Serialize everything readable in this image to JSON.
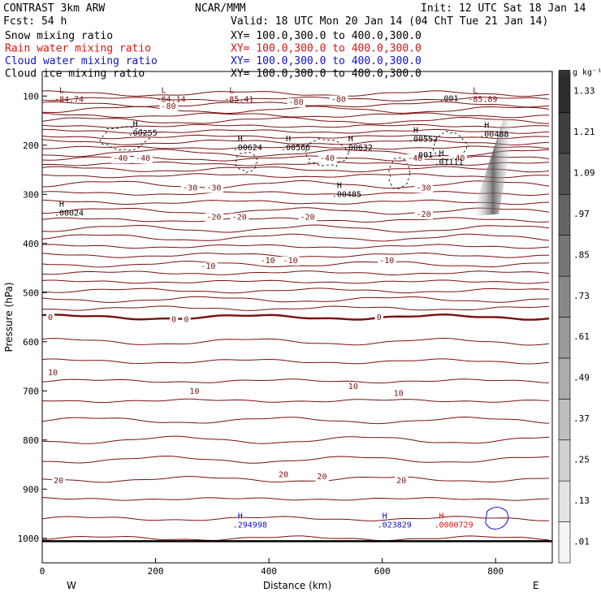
{
  "header": {
    "left_title": "CONTRAST  3km ARW",
    "center_title": "NCAR/MMM",
    "init": "Init: 12 UTC Sat 18 Jan 14",
    "fcst": "Fcst:   54 h",
    "valid": "Valid: 18 UTC Mon 20 Jan 14 (04 ChT Tue 21 Jan 14)"
  },
  "fields": [
    {
      "name": "Snow mixing ratio",
      "xy": "XY= 100.0,300.0 to 400.0,300.0",
      "color": "#000000"
    },
    {
      "name": "Rain water mixing ratio",
      "xy": "XY= 100.0,300.0 to 400.0,300.0",
      "color": "#e01010"
    },
    {
      "name": "Cloud water mixing ratio",
      "xy": "XY= 100.0,300.0 to 400.0,300.0",
      "color": "#1010d0"
    },
    {
      "name": "Cloud ice mixing ratio",
      "xy": "XY= 100.0,300.0 to 400.0,300.0",
      "color": "#000000"
    }
  ],
  "chart_data": {
    "type": "cross-section",
    "xlabel": "Distance (km)",
    "ylabel": "Pressure (hPa)",
    "xlim": [
      0,
      900
    ],
    "ylim": [
      1050,
      50
    ],
    "x_ticks": [
      0,
      200,
      400,
      600,
      800
    ],
    "y_ticks": [
      100,
      200,
      300,
      400,
      500,
      600,
      700,
      800,
      900,
      1000
    ],
    "left_end": "W",
    "right_end": "E",
    "colorbar": {
      "unit": "g kg⁻¹",
      "levels": [
        ".01",
        ".13",
        ".25",
        ".37",
        ".49",
        ".61",
        ".73",
        ".85",
        ".97",
        "1.09",
        "1.21",
        "1.33"
      ]
    },
    "temperature_labels": [
      {
        "x": 210,
        "p": 126,
        "text": "-80"
      },
      {
        "x": 510,
        "p": 112,
        "text": "-80"
      },
      {
        "x": 435,
        "p": 118,
        "text": "-80"
      },
      {
        "x": 125,
        "p": 232,
        "text": "-40"
      },
      {
        "x": 165,
        "p": 232,
        "text": "-40"
      },
      {
        "x": 490,
        "p": 232,
        "text": "-40"
      },
      {
        "x": 645,
        "p": 232,
        "text": "-40"
      },
      {
        "x": 720,
        "p": 232,
        "text": "-40"
      },
      {
        "x": 248,
        "p": 292,
        "text": "-30"
      },
      {
        "x": 290,
        "p": 292,
        "text": "-30"
      },
      {
        "x": 660,
        "p": 292,
        "text": "-30"
      },
      {
        "x": 290,
        "p": 352,
        "text": "-20"
      },
      {
        "x": 335,
        "p": 352,
        "text": "-20"
      },
      {
        "x": 455,
        "p": 352,
        "text": "-20"
      },
      {
        "x": 660,
        "p": 346,
        "text": "-20"
      },
      {
        "x": 280,
        "p": 452,
        "text": "-10"
      },
      {
        "x": 385,
        "p": 440,
        "text": "-10"
      },
      {
        "x": 425,
        "p": 440,
        "text": "-10"
      },
      {
        "x": 595,
        "p": 440,
        "text": "-10"
      },
      {
        "x": 10,
        "p": 556,
        "text": "0"
      },
      {
        "x": 228,
        "p": 560,
        "text": "0"
      },
      {
        "x": 250,
        "p": 560,
        "text": "0"
      },
      {
        "x": 590,
        "p": 556,
        "text": "0"
      },
      {
        "x": 10,
        "p": 668,
        "text": "10"
      },
      {
        "x": 260,
        "p": 706,
        "text": "10"
      },
      {
        "x": 540,
        "p": 696,
        "text": "10"
      },
      {
        "x": 620,
        "p": 710,
        "text": "10"
      },
      {
        "x": 20,
        "p": 888,
        "text": "20"
      },
      {
        "x": 417,
        "p": 876,
        "text": "20"
      },
      {
        "x": 485,
        "p": 880,
        "text": "20"
      },
      {
        "x": 625,
        "p": 888,
        "text": "20"
      }
    ],
    "extrema": [
      {
        "x": 30,
        "p": 94,
        "type": "L",
        "value": "-84.74",
        "color": "#7a1010"
      },
      {
        "x": 210,
        "p": 94,
        "type": "L",
        "value": "-84.14",
        "color": "#7a1010"
      },
      {
        "x": 330,
        "p": 94,
        "type": "L",
        "value": "-85.41",
        "color": "#7a1010"
      },
      {
        "x": 760,
        "p": 94,
        "type": "L",
        "value": "-85.89",
        "color": "#7a1010"
      },
      {
        "x": 160,
        "p": 162,
        "type": "H",
        "value": ".00255",
        "color": "#000000"
      },
      {
        "x": 345,
        "p": 192,
        "type": "H",
        "value": ".00624",
        "color": "#000000"
      },
      {
        "x": 430,
        "p": 192,
        "type": "H",
        "value": ".00566",
        "color": "#000000"
      },
      {
        "x": 540,
        "p": 192,
        "type": "H",
        "value": ".00632",
        "color": "#000000"
      },
      {
        "x": 655,
        "p": 175,
        "type": "H",
        "value": ".00552",
        "color": "#000000"
      },
      {
        "x": 520,
        "p": 287,
        "type": "H",
        "value": ".00485",
        "color": "#000000"
      },
      {
        "x": 700,
        "p": 222,
        "type": "H",
        "value": ".01111",
        "color": "#000000"
      },
      {
        "x": 780,
        "p": 165,
        "type": "H",
        "value": ".00488",
        "color": "#000000"
      },
      {
        "x": 30,
        "p": 325,
        "type": "H",
        "value": ".00024",
        "color": "#000000"
      },
      {
        "x": 345,
        "p": 960,
        "type": "H",
        "value": ".294998",
        "color": "#1010d0"
      },
      {
        "x": 600,
        "p": 960,
        "type": "H",
        "value": ".023829",
        "color": "#1010d0"
      },
      {
        "x": 700,
        "p": 960,
        "type": "H",
        "value": ".0000729",
        "color": "#e01010"
      }
    ],
    "small_labels": [
      {
        "x": 700,
        "p": 110,
        "text": ".001"
      },
      {
        "x": 655,
        "p": 225,
        "text": ".001"
      }
    ]
  }
}
